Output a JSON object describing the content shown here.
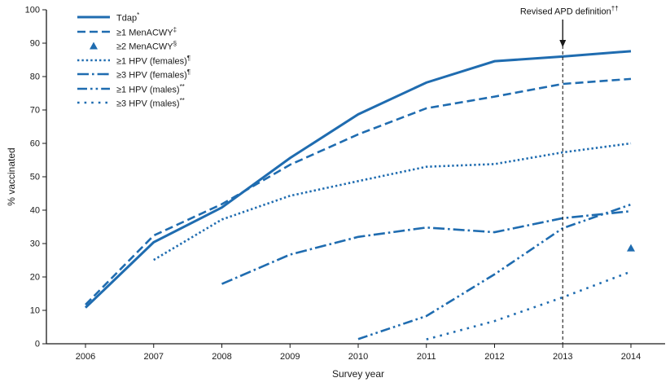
{
  "chart_data": {
    "type": "line",
    "xlabel": "Survey year",
    "ylabel": "% vaccinated",
    "ylim": [
      0,
      100
    ],
    "ytick_step": 10,
    "x": [
      2006,
      2007,
      2008,
      2009,
      2010,
      2011,
      2012,
      2013,
      2014
    ],
    "line_color": "#1f6cb0",
    "axis_color": "#1a1a1a",
    "legend_position": "top-left",
    "grid": false,
    "annotation": {
      "label": "Revised APD definition",
      "sup": "††",
      "x": 2013
    },
    "series": [
      {
        "id": "tdap",
        "name": "Tdap",
        "sup": "*",
        "style": "solid",
        "values": [
          10.8,
          30.4,
          40.8,
          55.6,
          68.7,
          78.2,
          84.6,
          86.0,
          87.6
        ]
      },
      {
        "id": "menacwy-1plus",
        "name": "≥1 MenACWY",
        "sup": "‡",
        "style": "dashed",
        "values": [
          11.7,
          32.4,
          41.8,
          53.6,
          62.7,
          70.5,
          74.0,
          77.8,
          79.3
        ]
      },
      {
        "id": "menacwy-2plus",
        "name": "≥2 MenACWY",
        "sup": "§",
        "style": "triangle-marker",
        "values": [
          null,
          null,
          null,
          null,
          null,
          null,
          null,
          null,
          28.5
        ]
      },
      {
        "id": "hpv-1plus-females",
        "name": "≥1 HPV (females)",
        "sup": "¶",
        "style": "dotted",
        "values": [
          null,
          25.1,
          37.2,
          44.3,
          48.7,
          53.0,
          53.8,
          57.3,
          60.0
        ]
      },
      {
        "id": "hpv-3plus-females",
        "name": "≥3 HPV (females)",
        "sup": "¶",
        "style": "dashdot",
        "values": [
          null,
          null,
          17.9,
          26.7,
          32.0,
          34.8,
          33.4,
          37.6,
          39.7
        ]
      },
      {
        "id": "hpv-1plus-males",
        "name": "≥1 HPV (males)",
        "sup": "**",
        "style": "dashdotdot",
        "values": [
          null,
          null,
          null,
          null,
          1.4,
          8.3,
          20.8,
          34.6,
          41.7
        ]
      },
      {
        "id": "hpv-3plus-males",
        "name": "≥3 HPV (males)",
        "sup": "**",
        "style": "sparse-dotted",
        "values": [
          null,
          null,
          null,
          null,
          null,
          1.3,
          6.8,
          13.9,
          21.6
        ]
      }
    ]
  }
}
